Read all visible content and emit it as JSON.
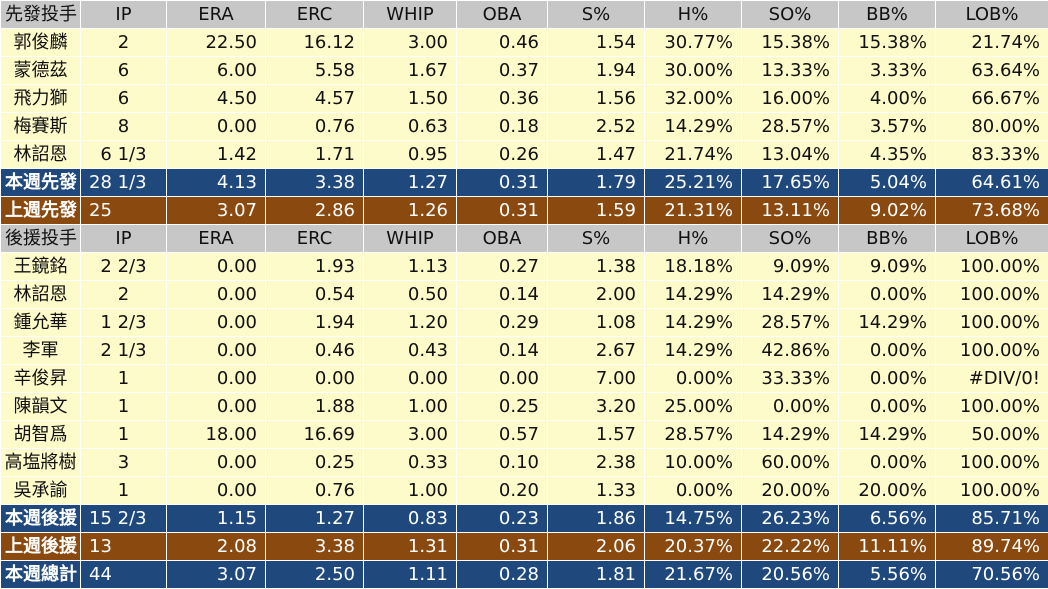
{
  "columns": [
    "IP",
    "ERA",
    "ERC",
    "WHIP",
    "OBA",
    "S%",
    "H%",
    "SO%",
    "BB%",
    "LOB%"
  ],
  "starters": {
    "header_label": "先發投手",
    "rows": [
      {
        "name": "郭俊麟",
        "vals": [
          "2",
          "22.50",
          "16.12",
          "3.00",
          "0.46",
          "1.54",
          "30.77%",
          "15.38%",
          "15.38%",
          "21.74%"
        ]
      },
      {
        "name": "蒙德茲",
        "vals": [
          "6",
          "6.00",
          "5.58",
          "1.67",
          "0.37",
          "1.94",
          "30.00%",
          "13.33%",
          "3.33%",
          "63.64%"
        ]
      },
      {
        "name": "飛力獅",
        "vals": [
          "6",
          "4.50",
          "4.57",
          "1.50",
          "0.36",
          "1.56",
          "32.00%",
          "16.00%",
          "4.00%",
          "66.67%"
        ]
      },
      {
        "name": "梅賽斯",
        "vals": [
          "8",
          "0.00",
          "0.76",
          "0.63",
          "0.18",
          "2.52",
          "14.29%",
          "28.57%",
          "3.57%",
          "80.00%"
        ]
      },
      {
        "name": "林詔恩",
        "vals": [
          "6 1/3",
          "1.42",
          "1.71",
          "0.95",
          "0.26",
          "1.47",
          "21.74%",
          "13.04%",
          "4.35%",
          "83.33%"
        ]
      }
    ],
    "this_week": {
      "name": "本週先發",
      "vals": [
        "28 1/3",
        "4.13",
        "3.38",
        "1.27",
        "0.31",
        "1.79",
        "25.21%",
        "17.65%",
        "5.04%",
        "64.61%"
      ]
    },
    "last_week": {
      "name": "上週先發",
      "vals": [
        "25",
        "3.07",
        "2.86",
        "1.26",
        "0.31",
        "1.59",
        "21.31%",
        "13.11%",
        "9.02%",
        "73.68%"
      ]
    }
  },
  "relievers": {
    "header_label": "後援投手",
    "rows": [
      {
        "name": "王鏡銘",
        "vals": [
          "2 2/3",
          "0.00",
          "1.93",
          "1.13",
          "0.27",
          "1.38",
          "18.18%",
          "9.09%",
          "9.09%",
          "100.00%"
        ]
      },
      {
        "name": "林詔恩",
        "vals": [
          "2",
          "0.00",
          "0.54",
          "0.50",
          "0.14",
          "2.00",
          "14.29%",
          "14.29%",
          "0.00%",
          "100.00%"
        ]
      },
      {
        "name": "鍾允華",
        "vals": [
          "1 2/3",
          "0.00",
          "1.94",
          "1.20",
          "0.29",
          "1.08",
          "14.29%",
          "28.57%",
          "14.29%",
          "100.00%"
        ]
      },
      {
        "name": "李軍",
        "vals": [
          "2 1/3",
          "0.00",
          "0.46",
          "0.43",
          "0.14",
          "2.67",
          "14.29%",
          "42.86%",
          "0.00%",
          "100.00%"
        ]
      },
      {
        "name": "辛俊昇",
        "vals": [
          "1",
          "0.00",
          "0.00",
          "0.00",
          "0.00",
          "7.00",
          "0.00%",
          "33.33%",
          "0.00%",
          "#DIV/0!"
        ]
      },
      {
        "name": "陳韻文",
        "vals": [
          "1",
          "0.00",
          "1.88",
          "1.00",
          "0.25",
          "3.20",
          "25.00%",
          "0.00%",
          "0.00%",
          "100.00%"
        ]
      },
      {
        "name": "胡智爲",
        "vals": [
          "1",
          "18.00",
          "16.69",
          "3.00",
          "0.57",
          "1.57",
          "28.57%",
          "14.29%",
          "14.29%",
          "50.00%"
        ]
      },
      {
        "name": "高塩將樹",
        "vals": [
          "3",
          "0.00",
          "0.25",
          "0.33",
          "0.10",
          "2.38",
          "10.00%",
          "60.00%",
          "0.00%",
          "100.00%"
        ]
      },
      {
        "name": "吳承諭",
        "vals": [
          "1",
          "0.00",
          "0.76",
          "1.00",
          "0.20",
          "1.33",
          "0.00%",
          "20.00%",
          "20.00%",
          "100.00%"
        ]
      }
    ],
    "this_week": {
      "name": "本週後援",
      "vals": [
        "15 2/3",
        "1.15",
        "1.27",
        "0.83",
        "0.23",
        "1.86",
        "14.75%",
        "26.23%",
        "6.56%",
        "85.71%"
      ]
    },
    "last_week": {
      "name": "上週後援",
      "vals": [
        "13",
        "2.08",
        "3.38",
        "1.31",
        "0.31",
        "2.06",
        "20.37%",
        "22.22%",
        "11.11%",
        "89.74%"
      ]
    }
  },
  "total": {
    "name": "本週總計",
    "vals": [
      "44",
      "3.07",
      "2.50",
      "1.11",
      "0.28",
      "1.81",
      "21.67%",
      "20.56%",
      "5.56%",
      "70.56%"
    ]
  },
  "colors": {
    "header_bg": "#c7c7c7",
    "body_bg": "#fdfbc9",
    "this_week_bg": "#1f497d",
    "last_week_bg": "#8a4a0f"
  }
}
